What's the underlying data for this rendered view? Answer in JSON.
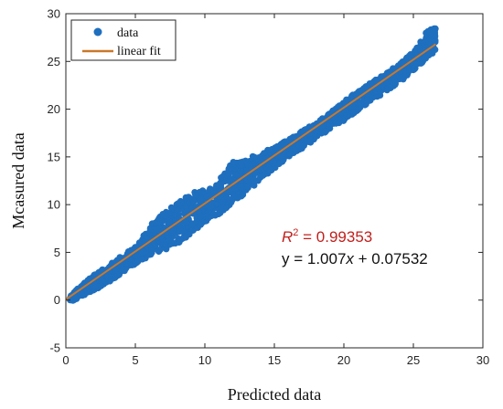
{
  "chart_data": {
    "type": "scatter",
    "xlabel": "Predicted data",
    "ylabel": "Mcasured data",
    "xlim": [
      0,
      30
    ],
    "ylim": [
      -5,
      30
    ],
    "xticks": [
      "0",
      "5",
      "10",
      "15",
      "20",
      "25",
      "30"
    ],
    "yticks": [
      "-5",
      "0",
      "5",
      "10",
      "15",
      "20",
      "25",
      "30"
    ],
    "grid": false,
    "legend_position": "top-left",
    "series": [
      {
        "name": "data",
        "kind": "scatter",
        "color": "#1f6fbf",
        "band": [
          {
            "x": 0.3,
            "lo": -0.2,
            "hi": 0.4
          },
          {
            "x": 1.0,
            "lo": 0.3,
            "hi": 1.4
          },
          {
            "x": 2.0,
            "lo": 1.0,
            "hi": 2.6
          },
          {
            "x": 3.0,
            "lo": 1.8,
            "hi": 3.6
          },
          {
            "x": 4.0,
            "lo": 2.8,
            "hi": 4.6
          },
          {
            "x": 5.0,
            "lo": 3.8,
            "hi": 5.6
          },
          {
            "x": 6.0,
            "lo": 4.6,
            "hi": 7.8
          },
          {
            "x": 7.0,
            "lo": 5.2,
            "hi": 9.2
          },
          {
            "x": 8.0,
            "lo": 5.8,
            "hi": 10.3
          },
          {
            "x": 9.0,
            "lo": 7.0,
            "hi": 11.2
          },
          {
            "x": 10.0,
            "lo": 8.2,
            "hi": 11.6
          },
          {
            "x": 11.0,
            "lo": 9.0,
            "hi": 12.5
          },
          {
            "x": 12.0,
            "lo": 10.2,
            "hi": 14.5
          },
          {
            "x": 13.0,
            "lo": 11.2,
            "hi": 14.8
          },
          {
            "x": 14.0,
            "lo": 12.6,
            "hi": 15.4
          },
          {
            "x": 15.0,
            "lo": 13.8,
            "hi": 16.0
          },
          {
            "x": 16.0,
            "lo": 15.0,
            "hi": 16.8
          },
          {
            "x": 17.0,
            "lo": 15.9,
            "hi": 17.7
          },
          {
            "x": 18.0,
            "lo": 16.9,
            "hi": 18.6
          },
          {
            "x": 19.0,
            "lo": 17.9,
            "hi": 19.6
          },
          {
            "x": 20.0,
            "lo": 18.8,
            "hi": 20.8
          },
          {
            "x": 21.0,
            "lo": 19.9,
            "hi": 21.9
          },
          {
            "x": 22.0,
            "lo": 20.9,
            "hi": 22.8
          },
          {
            "x": 23.0,
            "lo": 21.8,
            "hi": 23.8
          },
          {
            "x": 24.0,
            "lo": 22.8,
            "hi": 24.7
          },
          {
            "x": 25.0,
            "lo": 24.0,
            "hi": 26.0
          },
          {
            "x": 26.0,
            "lo": 25.3,
            "hi": 28.2
          },
          {
            "x": 26.6,
            "lo": 26.2,
            "hi": 28.6
          }
        ]
      },
      {
        "name": "linear fit",
        "kind": "line",
        "color": "#c9782a",
        "x": [
          0,
          26.6
        ],
        "y": [
          0.07532,
          26.8
        ]
      }
    ],
    "annotations": {
      "r2_prefix": "R",
      "r2_superscript": "2",
      "r2_value": " = 0.99353",
      "equation_prefix": "y = 1.007",
      "equation_var": "x",
      "equation_suffix": " + 0.07532"
    }
  }
}
